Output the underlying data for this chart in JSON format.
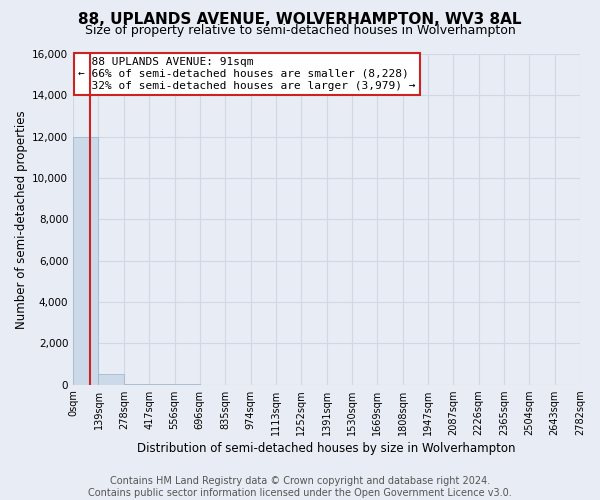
{
  "title": "88, UPLANDS AVENUE, WOLVERHAMPTON, WV3 8AL",
  "subtitle": "Size of property relative to semi-detached houses in Wolverhampton",
  "xlabel": "Distribution of semi-detached houses by size in Wolverhampton",
  "ylabel": "Number of semi-detached properties",
  "footer_line1": "Contains HM Land Registry data © Crown copyright and database right 2024.",
  "footer_line2": "Contains public sector information licensed under the Open Government Licence v3.0.",
  "property_label": "88 UPLANDS AVENUE: 91sqm",
  "pct_smaller": 66,
  "num_smaller": 8228,
  "pct_larger": 32,
  "num_larger": 3979,
  "bin_labels": [
    "0sqm",
    "139sqm",
    "278sqm",
    "417sqm",
    "556sqm",
    "696sqm",
    "835sqm",
    "974sqm",
    "1113sqm",
    "1252sqm",
    "1391sqm",
    "1530sqm",
    "1669sqm",
    "1808sqm",
    "1947sqm",
    "2087sqm",
    "2226sqm",
    "2365sqm",
    "2504sqm",
    "2643sqm",
    "2782sqm"
  ],
  "bar_heights": [
    12000,
    500,
    30,
    10,
    5,
    2,
    1,
    1,
    0,
    0,
    0,
    0,
    0,
    0,
    0,
    0,
    0,
    0,
    0,
    0
  ],
  "num_bins": 20,
  "vline_bin": 0.65,
  "bar_color": "#ccd9e8",
  "bar_edgecolor": "#9ab0c8",
  "vline_color": "#cc2222",
  "ylim": [
    0,
    16000
  ],
  "yticks": [
    0,
    2000,
    4000,
    6000,
    8000,
    10000,
    12000,
    14000,
    16000
  ],
  "annotation_box_color": "#cc2222",
  "bg_color": "#e8ecf4",
  "grid_color": "#d0d8e8",
  "title_fontsize": 11,
  "subtitle_fontsize": 9,
  "axis_label_fontsize": 8.5,
  "tick_fontsize": 7.5,
  "annotation_fontsize": 8,
  "footer_fontsize": 7
}
